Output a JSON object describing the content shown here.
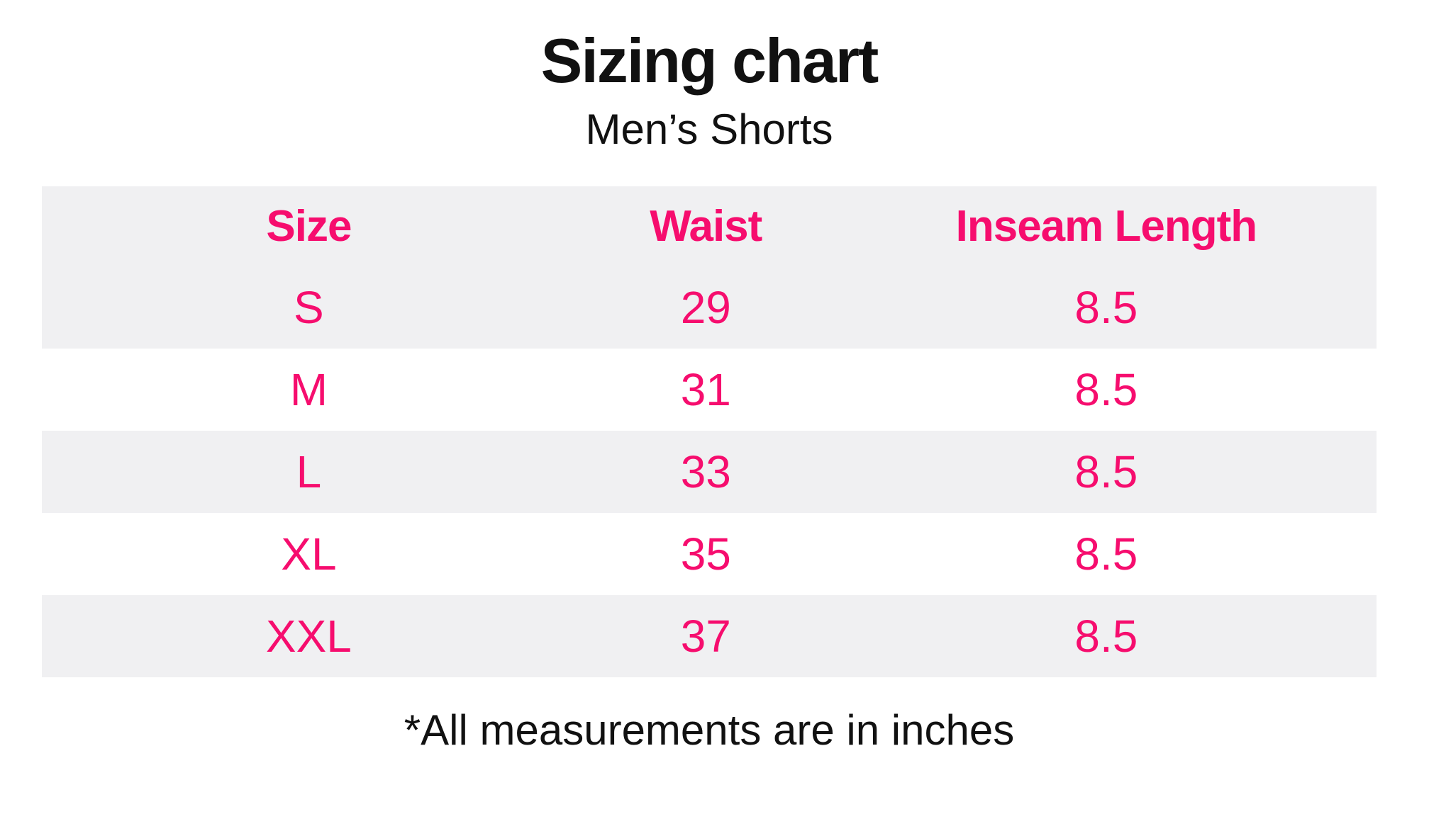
{
  "header": {
    "title": "Sizing chart",
    "subtitle": "Men’s Shorts"
  },
  "table": {
    "columns": [
      "Size",
      "Waist",
      "Inseam Length"
    ],
    "rows": [
      {
        "size": "S",
        "waist": "29",
        "inseam": "8.5"
      },
      {
        "size": "M",
        "waist": "31",
        "inseam": "8.5"
      },
      {
        "size": "L",
        "waist": "33",
        "inseam": "8.5"
      },
      {
        "size": "XL",
        "waist": "35",
        "inseam": "8.5"
      },
      {
        "size": "XXL",
        "waist": "37",
        "inseam": "8.5"
      }
    ]
  },
  "footnote": "*All measurements are in inches",
  "colors": {
    "accent": "#F60D6E",
    "row-alt": "#F0F0F2",
    "text": "#111111"
  },
  "chart_data": {
    "type": "table",
    "title": "Sizing chart",
    "subtitle": "Men's Shorts",
    "columns": [
      "Size",
      "Waist",
      "Inseam Length"
    ],
    "rows": [
      [
        "S",
        29,
        8.5
      ],
      [
        "M",
        31,
        8.5
      ],
      [
        "L",
        33,
        8.5
      ],
      [
        "XL",
        35,
        8.5
      ],
      [
        "XXL",
        37,
        8.5
      ]
    ],
    "units": "inches",
    "note": "*All measurements are in inches"
  }
}
